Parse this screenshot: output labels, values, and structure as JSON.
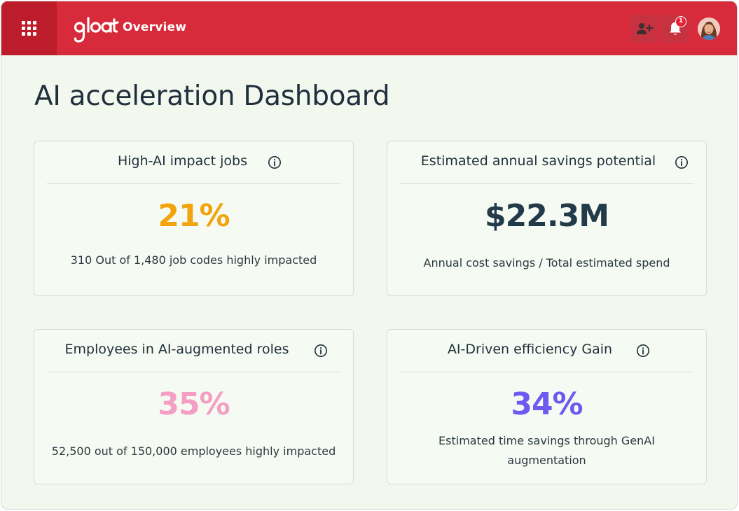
{
  "header": {
    "logo_text": "gloat",
    "title": "Overview",
    "notification_count": "1",
    "icons": {
      "apps": "apps-grid-icon",
      "add_user": "add-user-icon",
      "bell": "bell-icon"
    },
    "colors": {
      "bar": "#d72a3a",
      "apps_bg": "#bd1c2a"
    }
  },
  "page": {
    "title": "AI acceleration Dashboard"
  },
  "cards": [
    {
      "title": "High-AI impact jobs",
      "value": "21%",
      "value_color": "#f2a40f",
      "subtitle": "310 Out of 1,480 job codes highly impacted"
    },
    {
      "title": "Estimated annual savings potential",
      "value": "$22.3M",
      "value_color": "#223a4a",
      "subtitle": "Annual cost savings / Total estimated spend"
    },
    {
      "title": "Employees in AI-augmented roles",
      "value": "35%",
      "value_color": "#f59ec4",
      "subtitle": "52,500 out of 150,000 employees highly impacted"
    },
    {
      "title": "AI-Driven efficiency Gain",
      "value": "34%",
      "value_color": "#6f5af1",
      "subtitle_line1": "Estimated time savings through GenAI",
      "subtitle_line2": "augmentation"
    }
  ]
}
